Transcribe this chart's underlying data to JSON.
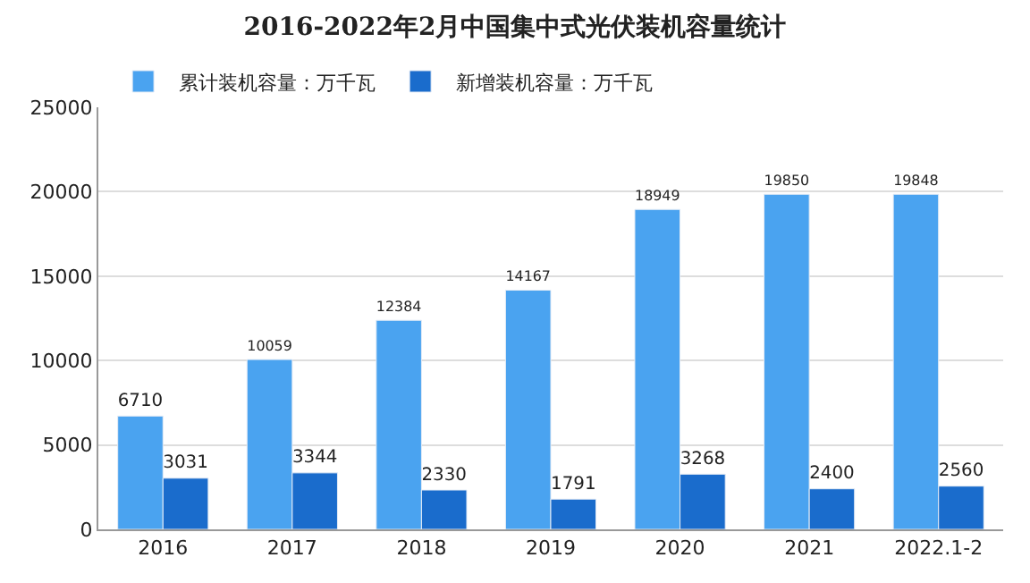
{
  "chart_data": {
    "type": "bar",
    "title": "2016-2022年2月中国集中式光伏装机容量统计",
    "categories": [
      "2016",
      "2017",
      "2018",
      "2019",
      "2020",
      "2021",
      "2022.1-2"
    ],
    "series": [
      {
        "name": "累计装机容量：万千瓦",
        "color": "#4aa3f0",
        "values": [
          6710,
          10059,
          12384,
          14167,
          18949,
          19850,
          19848
        ]
      },
      {
        "name": "新增装机容量：万千瓦",
        "color": "#1a6ccc",
        "values": [
          3031,
          3344,
          2330,
          1791,
          3268,
          2400,
          2560
        ]
      }
    ],
    "ylim": [
      0,
      25000
    ],
    "yticks": [
      0,
      5000,
      10000,
      15000,
      20000,
      25000
    ],
    "grid": "y",
    "legend": "top left",
    "data_labels": true
  }
}
